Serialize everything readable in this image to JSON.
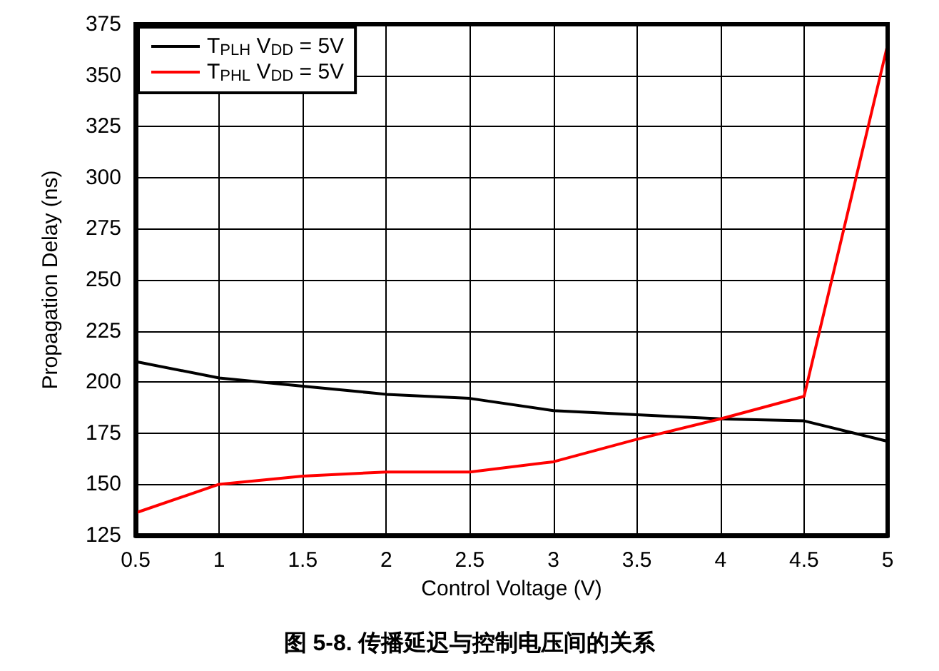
{
  "chart_data": {
    "type": "line",
    "title": "图 5-8. 传播延迟与控制电压间的关系",
    "xlabel": "Control Voltage (V)",
    "ylabel": "Propagation Delay (ns)",
    "x": [
      0.5,
      1,
      1.5,
      2,
      2.5,
      3,
      3.5,
      4,
      4.5,
      5
    ],
    "series": [
      {
        "name": "T$_{PLH}$ V$_{DD}$ = 5V",
        "color": "#000000",
        "values": [
          210,
          202,
          198,
          194,
          192,
          186,
          184,
          182,
          181,
          171
        ]
      },
      {
        "name": "T$_{PHL}$ V$_{DD}$ = 5V",
        "color": "#ff0000",
        "values": [
          136,
          150,
          154,
          156,
          156,
          161,
          172,
          182,
          193,
          365
        ]
      }
    ],
    "xlim": [
      0.5,
      5
    ],
    "xticks": [
      0.5,
      1,
      1.5,
      2,
      2.5,
      3,
      3.5,
      4,
      4.5,
      5
    ],
    "ylim": [
      125,
      375
    ],
    "yticks": [
      125,
      150,
      175,
      200,
      225,
      250,
      275,
      300,
      325,
      350,
      375
    ],
    "grid": true,
    "legend": "top left",
    "marker": "none",
    "line_style": "solid"
  }
}
